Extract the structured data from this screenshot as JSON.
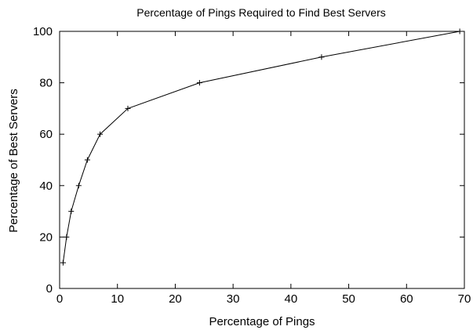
{
  "chart_data": {
    "type": "line",
    "title": "Percentage of Pings Required to Find Best Servers",
    "xlabel": "Percentage of Pings",
    "ylabel": "Percentage of Best Servers",
    "xlim": [
      0,
      70
    ],
    "ylim": [
      0,
      100
    ],
    "xticks": [
      "0",
      "10",
      "20",
      "30",
      "40",
      "50",
      "60",
      "70"
    ],
    "yticks": [
      "0",
      "20",
      "40",
      "60",
      "80",
      "100"
    ],
    "grid": false,
    "series": [
      {
        "x": [
          0.6,
          1.2,
          2.0,
          3.3,
          4.8,
          7.0,
          11.8,
          24.2,
          45.3,
          69.2
        ],
        "y": [
          10,
          20,
          30,
          40,
          50,
          60,
          70,
          80,
          90,
          100
        ],
        "marker": "plus",
        "color": "#000000"
      }
    ]
  }
}
